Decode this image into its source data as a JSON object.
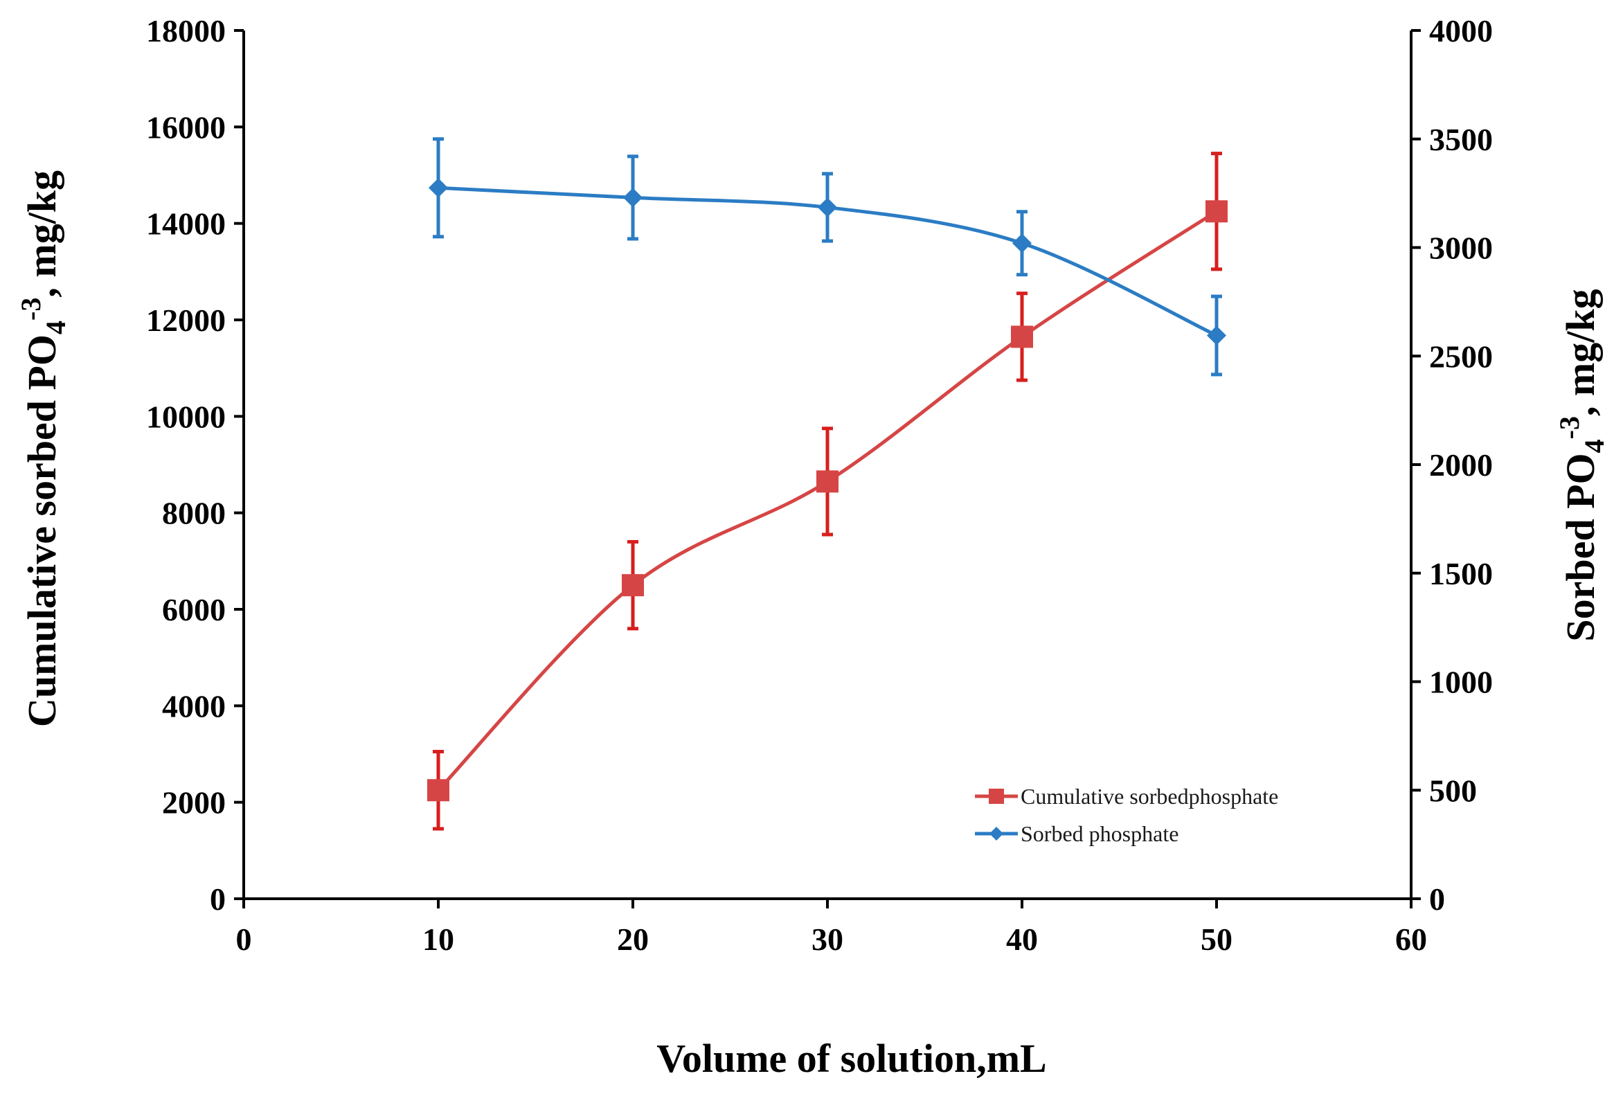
{
  "chart_data": {
    "type": "line",
    "xlabel": "Volume of solution,mL",
    "ylabel_left": "Cumulative sorbed PO4-3, mg/kg",
    "ylabel_right": "Sorbed PO4-3, mg/kg",
    "ylabel_parts": {
      "base": "PO",
      "sub": "4",
      "sup": "-3",
      "unit": ", mg/kg"
    },
    "ylabel_left_prefix": "Cumulative sorbed ",
    "ylabel_right_prefix": "Sorbed ",
    "xlim": [
      0,
      60
    ],
    "ylim_left": [
      0,
      18000
    ],
    "ylim_right": [
      0,
      4000
    ],
    "x_ticks": [
      0,
      10,
      20,
      30,
      40,
      50,
      60
    ],
    "y_left_ticks": [
      0,
      2000,
      4000,
      6000,
      8000,
      10000,
      12000,
      14000,
      16000,
      18000
    ],
    "y_right_ticks": [
      0,
      500,
      1000,
      1500,
      2000,
      2500,
      3000,
      3500,
      4000
    ],
    "legend_position": "lower-right",
    "series": [
      {
        "name": "Cumulative sorbedphosphate",
        "axis": "left",
        "marker": "square",
        "color": "#d64545",
        "error_color": "#d81e1e",
        "x": [
          10,
          20,
          30,
          40,
          50
        ],
        "y": [
          2250,
          6500,
          8650,
          11650,
          14250
        ],
        "error": [
          800,
          900,
          1100,
          900,
          1200
        ]
      },
      {
        "name": "Sorbed phosphate",
        "axis": "right",
        "marker": "diamond",
        "color": "#2b7cc4",
        "error_color": "#2b7cc4",
        "x": [
          10,
          20,
          30,
          40,
          50
        ],
        "y": [
          3275,
          3230,
          3185,
          3020,
          2595
        ],
        "error": [
          225,
          190,
          155,
          145,
          180
        ]
      }
    ]
  }
}
